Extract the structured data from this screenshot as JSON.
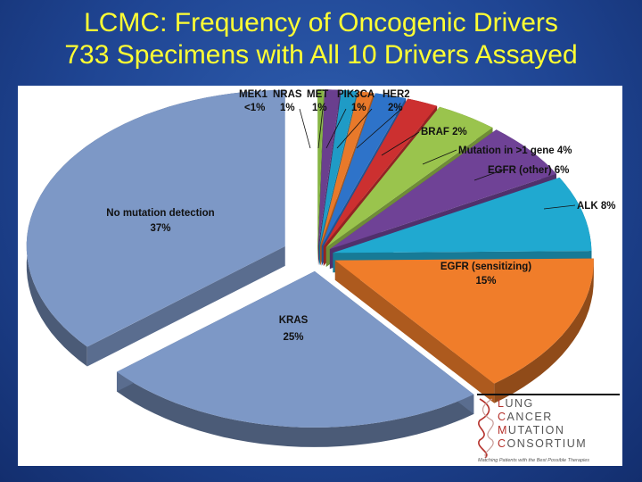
{
  "title": {
    "line1": "LCMC: Frequency of Oncogenic Drivers",
    "line2": "733 Specimens with All 10 Drivers Assayed"
  },
  "chart_data": {
    "type": "pie",
    "style": "3d-exploded",
    "slices": [
      {
        "name": "MEK1",
        "label": "<1%",
        "value": 0.4,
        "color": "#86b543"
      },
      {
        "name": "NRAS",
        "label": "1%",
        "value": 1,
        "color": "#6a3f8e"
      },
      {
        "name": "MET",
        "label": "1%",
        "value": 1,
        "color": "#1f9bc6"
      },
      {
        "name": "PIK3CA",
        "label": "1%",
        "value": 1,
        "color": "#e8792a"
      },
      {
        "name": "HER2",
        "label": "2%",
        "value": 2,
        "color": "#2e73c9"
      },
      {
        "name": "BRAF",
        "label": "2%",
        "value": 2,
        "color": "#cc3030"
      },
      {
        "name": "Mutation in >1 gene",
        "label": "4%",
        "value": 4,
        "color": "#9ac44d"
      },
      {
        "name": "EGFR (other)",
        "label": "6%",
        "value": 6,
        "color": "#6f4296"
      },
      {
        "name": "ALK",
        "label": "8%",
        "value": 8,
        "color": "#20a9d0"
      },
      {
        "name": "EGFR (sensitizing)",
        "label": "15%",
        "value": 15,
        "color": "#f07d2a"
      },
      {
        "name": "KRAS",
        "label": "25%",
        "value": 25,
        "color": "#7d98c6"
      },
      {
        "name": "No mutation detection",
        "label": "37%",
        "value": 37,
        "color": "#7d98c6"
      }
    ]
  },
  "labels": {
    "mek1_name": "MEK1",
    "mek1_pct": "<1%",
    "nras_name": "NRAS",
    "nras_pct": "1%",
    "met_name": "MET",
    "met_pct": "1%",
    "pik3ca_name": "PIK3CA",
    "pik3ca_pct": "1%",
    "her2_name": "HER2",
    "her2_pct": "2%",
    "braf": "BRAF 2%",
    "multi": "Mutation in >1 gene 4%",
    "egfr_other": "EGFR (other) 6%",
    "alk": "ALK 8%",
    "egfr_sens_name": "EGFR (sensitizing)",
    "egfr_sens_pct": "15%",
    "kras_name": "KRAS",
    "kras_pct": "25%",
    "nomut_name": "No mutation detection",
    "nomut_pct": "37%"
  },
  "logo": {
    "line1_initial": "L",
    "line1_rest": "UNG",
    "line2_initial": "C",
    "line2_rest": "ANCER",
    "line3_initial": "M",
    "line3_rest": "UTATION",
    "line4_initial": "C",
    "line4_rest": "ONSORTIUM",
    "tagline": "Matching Patients with the Best Possible Therapies",
    "accent_color": "#b5312b"
  }
}
